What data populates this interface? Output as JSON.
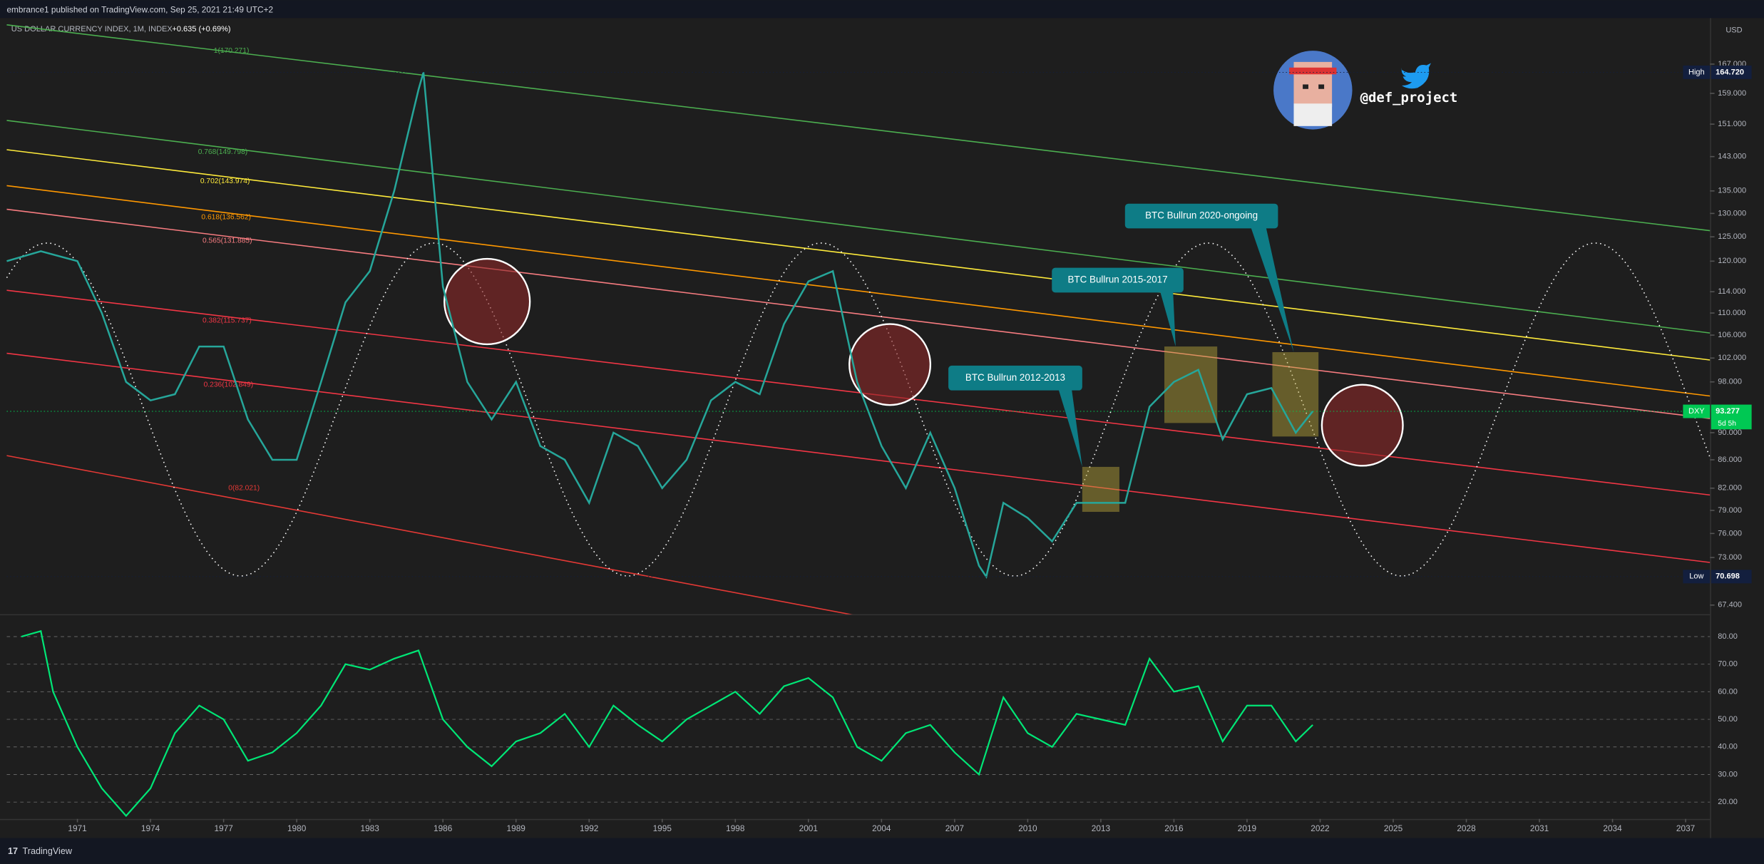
{
  "header": {
    "published": "embrance1 published on TradingView.com, Sep 25, 2021 21:49 UTC+2",
    "footer": "TradingView",
    "handle": "@def_project"
  },
  "chart_data": [
    {
      "type": "line",
      "title": "US DOLLAR CURRENCY INDEX, 1M, INDEX",
      "change": "+0.635 (+0.69%)",
      "currency": "USD",
      "color": "#26a69a",
      "log": true,
      "x": [
        1968.1,
        1969.5,
        1971,
        1972,
        1973,
        1974,
        1975,
        1976,
        1977,
        1978,
        1979,
        1980,
        1981,
        1982,
        1983,
        1984,
        1985,
        1985.2,
        1986,
        1987,
        1988,
        1989,
        1990,
        1991,
        1992,
        1993,
        1994,
        1995,
        1996,
        1997,
        1998,
        1999,
        2000,
        2001,
        2002,
        2003,
        2004,
        2005,
        2006,
        2007,
        2008,
        2008.3,
        2009,
        2010,
        2011,
        2012,
        2013,
        2014,
        2015,
        2016,
        2017,
        2018,
        2019,
        2020,
        2021,
        2021.7
      ],
      "values": [
        120,
        122,
        120,
        110,
        98,
        95,
        96,
        104,
        104,
        92,
        86,
        86,
        98,
        112,
        118,
        135,
        160,
        164.72,
        115,
        98,
        92,
        98,
        88,
        86,
        80,
        90,
        88,
        82,
        86,
        95,
        98,
        96,
        108,
        116,
        118,
        98,
        88,
        82,
        90,
        82,
        72,
        70.698,
        80,
        78,
        75,
        80,
        80,
        80,
        94,
        98,
        100,
        89,
        96,
        97,
        90,
        93.277
      ],
      "xlim": [
        1968.1,
        2038
      ],
      "xticks": [
        1971,
        1974,
        1977,
        1980,
        1983,
        1986,
        1989,
        1992,
        1995,
        1998,
        2001,
        2004,
        2007,
        2010,
        2013,
        2016,
        2019,
        2022,
        2025,
        2028,
        2031,
        2034,
        2037
      ],
      "ylim": [
        66.5,
        180.4
      ],
      "yticks": [
        {
          "value": 167,
          "label": "167.000"
        },
        {
          "value": 159,
          "label": "159.000"
        },
        {
          "value": 151,
          "label": "151.000"
        },
        {
          "value": 143,
          "label": "143.000"
        },
        {
          "value": 135,
          "label": "135.000"
        },
        {
          "value": 130,
          "label": "130.000"
        },
        {
          "value": 125,
          "label": "125.000"
        },
        {
          "value": 120,
          "label": "120.000"
        },
        {
          "value": 114,
          "label": "114.000"
        },
        {
          "value": 110,
          "label": "110.000"
        },
        {
          "value": 106,
          "label": "106.000"
        },
        {
          "value": 102,
          "label": "102.000"
        },
        {
          "value": 98,
          "label": "98.000"
        },
        {
          "value": 90,
          "label": "90.000"
        },
        {
          "value": 86,
          "label": "86.000"
        },
        {
          "value": 82,
          "label": "82.000"
        },
        {
          "value": 79,
          "label": "79.000"
        },
        {
          "value": 76,
          "label": "76.000"
        },
        {
          "value": 73,
          "label": "73.000"
        },
        {
          "value": 67.4,
          "label": "67.400"
        }
      ],
      "high_label": "High",
      "high": {
        "value": 164.72,
        "label": "164.720"
      },
      "low_label": "Low",
      "low": 70.698,
      "last_label": "DXY",
      "last": 93.277,
      "countdown": "5d 5h",
      "fib_labels": [
        "1(170.271)",
        "0.768(149.798)",
        "0.702(143.974)",
        "0.618(136.562)",
        "0.565(131.885)",
        "0.382(115.737)",
        "0.236(102.849)",
        "0(82.021)"
      ],
      "annotations": [
        "BTC Bullrun 2012-2013",
        "BTC Bullrun 2015-2017",
        "BTC Bullrun 2020-ongoing"
      ]
    },
    {
      "type": "line",
      "color": "#00e676",
      "grid": true,
      "x": [
        1968.7,
        1969.5,
        1970,
        1971,
        1972,
        1973,
        1974,
        1975,
        1976,
        1977,
        1978,
        1979,
        1980,
        1981,
        1982,
        1983,
        1984,
        1985,
        1986,
        1987,
        1988,
        1989,
        1990,
        1991,
        1992,
        1993,
        1994,
        1995,
        1996,
        1997,
        1998,
        1999,
        2000,
        2001,
        2002,
        2003,
        2004,
        2005,
        2006,
        2007,
        2008,
        2009,
        2010,
        2011,
        2012,
        2013,
        2014,
        2015,
        2016,
        2017,
        2018,
        2019,
        2020,
        2021,
        2021.7
      ],
      "values": [
        80,
        82,
        60,
        40,
        25,
        15,
        25,
        45,
        55,
        50,
        35,
        38,
        45,
        55,
        70,
        68,
        72,
        75,
        50,
        40,
        33,
        42,
        45,
        52,
        40,
        55,
        48,
        42,
        50,
        55,
        60,
        52,
        62,
        65,
        58,
        40,
        35,
        45,
        48,
        38,
        30,
        58,
        45,
        40,
        52,
        50,
        48,
        72,
        60,
        62,
        42,
        55,
        55,
        42,
        48
      ],
      "xlim": [
        1968.1,
        2038
      ],
      "ylim": [
        13.9,
        87.3
      ],
      "yticks": [
        {
          "value": 80,
          "label": "80.00"
        },
        {
          "value": 70,
          "label": "70.00"
        },
        {
          "value": 60,
          "label": "60.00"
        },
        {
          "value": 50,
          "label": "50.00"
        },
        {
          "value": 40,
          "label": "40.00"
        },
        {
          "value": 30,
          "label": "30.00"
        },
        {
          "value": 20,
          "label": "20.00"
        }
      ]
    }
  ]
}
